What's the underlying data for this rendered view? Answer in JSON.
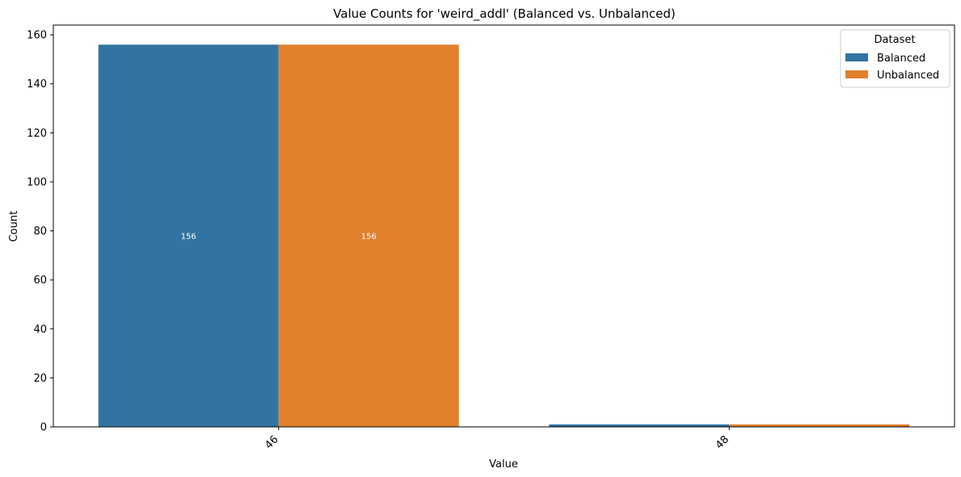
{
  "chart_data": {
    "type": "bar",
    "title": "Value Counts for 'weird_addl' (Balanced vs. Unbalanced)",
    "xlabel": "Value",
    "ylabel": "Count",
    "categories": [
      "46",
      "48"
    ],
    "series": [
      {
        "name": "Balanced",
        "values": [
          156,
          1
        ],
        "color": "#3274a1",
        "bar_labels": [
          "156",
          ""
        ]
      },
      {
        "name": "Unbalanced",
        "values": [
          156,
          1
        ],
        "color": "#e1812c",
        "bar_labels": [
          "156",
          ""
        ]
      }
    ],
    "ylim": [
      0,
      164
    ],
    "yticks": [
      0,
      20,
      40,
      60,
      80,
      100,
      120,
      140,
      160
    ],
    "grid": false,
    "legend": {
      "title": "Dataset",
      "placement": "top-right"
    }
  }
}
